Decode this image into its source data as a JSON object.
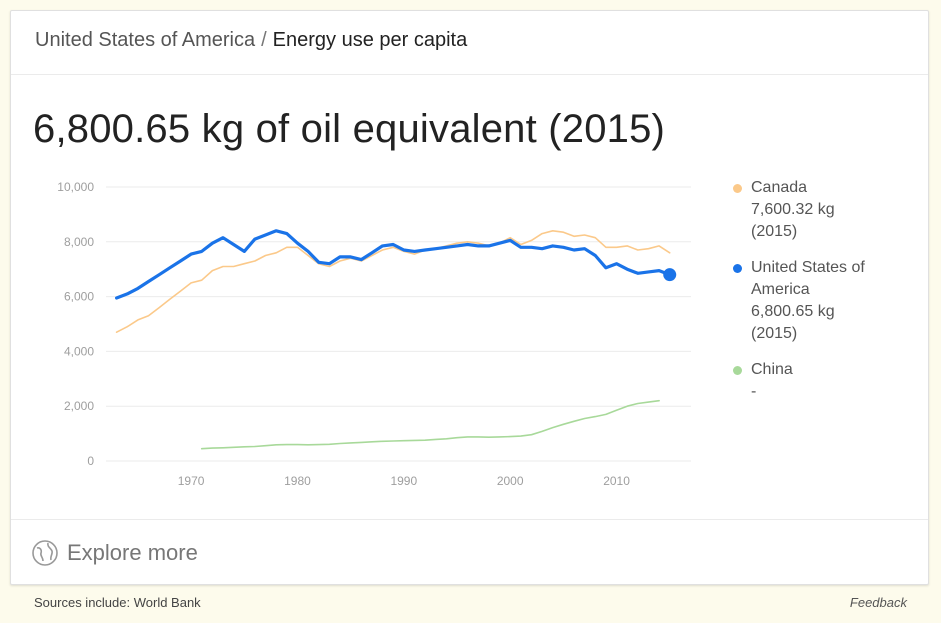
{
  "header": {
    "country": "United States of America",
    "separator": "/",
    "indicator": "Energy use per capita"
  },
  "headline": "6,800.65 kg of oil equivalent (2015)",
  "legend": [
    {
      "name": "Canada",
      "lines": [
        "Canada",
        "7,600.32 kg",
        "(2015)"
      ],
      "color": "#fbc98a"
    },
    {
      "name": "United States of America",
      "lines": [
        "United States of",
        "America",
        "6,800.65 kg",
        "(2015)"
      ],
      "color": "#1a73e8"
    },
    {
      "name": "China",
      "lines": [
        "China",
        "-"
      ],
      "color": "#a8d99a"
    }
  ],
  "explore": {
    "label": "Explore more",
    "icon": "globe-icon"
  },
  "footer": {
    "sources": "Sources include: World Bank",
    "feedback": "Feedback"
  },
  "colors": {
    "canada": "#fbc98a",
    "usa": "#1a73e8",
    "china": "#a8d99a",
    "grid": "#ebebeb",
    "tick": "#9e9e9e"
  },
  "chart_data": {
    "type": "line",
    "title": "",
    "xlabel": "",
    "ylabel": "",
    "xlim": [
      1962,
      2017
    ],
    "ylim": [
      0,
      10000
    ],
    "x_ticks": [
      1970,
      1980,
      1990,
      2000,
      2010
    ],
    "y_ticks": [
      0,
      2000,
      4000,
      6000,
      8000,
      10000
    ],
    "y_tick_labels": [
      "0",
      "2,000",
      "4,000",
      "6,000",
      "8,000",
      "10,000"
    ],
    "grid": true,
    "legend_position": "right",
    "series": [
      {
        "name": "Canada",
        "x": [
          1963,
          1964,
          1965,
          1966,
          1967,
          1968,
          1969,
          1970,
          1971,
          1972,
          1973,
          1974,
          1975,
          1976,
          1977,
          1978,
          1979,
          1980,
          1981,
          1982,
          1983,
          1984,
          1985,
          1986,
          1987,
          1988,
          1989,
          1990,
          1991,
          1992,
          1993,
          1994,
          1995,
          1996,
          1997,
          1998,
          1999,
          2000,
          2001,
          2002,
          2003,
          2004,
          2005,
          2006,
          2007,
          2008,
          2009,
          2010,
          2011,
          2012,
          2013,
          2014,
          2015
        ],
        "y": [
          4700,
          4900,
          5150,
          5300,
          5600,
          5900,
          6200,
          6500,
          6600,
          6950,
          7100,
          7100,
          7200,
          7300,
          7500,
          7600,
          7800,
          7800,
          7500,
          7200,
          7100,
          7300,
          7400,
          7300,
          7500,
          7700,
          7800,
          7650,
          7550,
          7700,
          7750,
          7850,
          7950,
          8000,
          7950,
          7850,
          7950,
          8150,
          7900,
          8050,
          8300,
          8400,
          8350,
          8200,
          8250,
          8150,
          7800,
          7800,
          7850,
          7700,
          7750,
          7850,
          7600
        ]
      },
      {
        "name": "United States of America",
        "x": [
          1963,
          1964,
          1965,
          1966,
          1967,
          1968,
          1969,
          1970,
          1971,
          1972,
          1973,
          1974,
          1975,
          1976,
          1977,
          1978,
          1979,
          1980,
          1981,
          1982,
          1983,
          1984,
          1985,
          1986,
          1987,
          1988,
          1989,
          1990,
          1991,
          1992,
          1993,
          1994,
          1995,
          1996,
          1997,
          1998,
          1999,
          2000,
          2001,
          2002,
          2003,
          2004,
          2005,
          2006,
          2007,
          2008,
          2009,
          2010,
          2011,
          2012,
          2013,
          2014,
          2015
        ],
        "y": [
          5950,
          6100,
          6300,
          6550,
          6800,
          7050,
          7300,
          7550,
          7650,
          7950,
          8150,
          7900,
          7650,
          8100,
          8250,
          8400,
          8300,
          7950,
          7650,
          7250,
          7200,
          7450,
          7450,
          7350,
          7600,
          7850,
          7900,
          7700,
          7650,
          7700,
          7750,
          7800,
          7850,
          7900,
          7850,
          7850,
          7950,
          8050,
          7800,
          7800,
          7750,
          7850,
          7800,
          7700,
          7750,
          7500,
          7050,
          7200,
          7000,
          6850,
          6900,
          6950,
          6800
        ]
      },
      {
        "name": "China",
        "x": [
          1971,
          1972,
          1973,
          1974,
          1975,
          1976,
          1977,
          1978,
          1979,
          1980,
          1981,
          1982,
          1983,
          1984,
          1985,
          1986,
          1987,
          1988,
          1989,
          1990,
          1991,
          1992,
          1993,
          1994,
          1995,
          1996,
          1997,
          1998,
          1999,
          2000,
          2001,
          2002,
          2003,
          2004,
          2005,
          2006,
          2007,
          2008,
          2009,
          2010,
          2011,
          2012,
          2013,
          2014
        ],
        "y": [
          450,
          470,
          480,
          500,
          520,
          530,
          560,
          590,
          600,
          600,
          590,
          600,
          610,
          640,
          660,
          680,
          700,
          720,
          730,
          740,
          750,
          760,
          790,
          810,
          850,
          880,
          880,
          870,
          880,
          890,
          910,
          960,
          1080,
          1220,
          1340,
          1450,
          1550,
          1620,
          1700,
          1850,
          2000,
          2100,
          2150,
          2200
        ]
      }
    ],
    "highlight": {
      "series": "United States of America",
      "x": 2015,
      "y": 6800.65
    }
  }
}
